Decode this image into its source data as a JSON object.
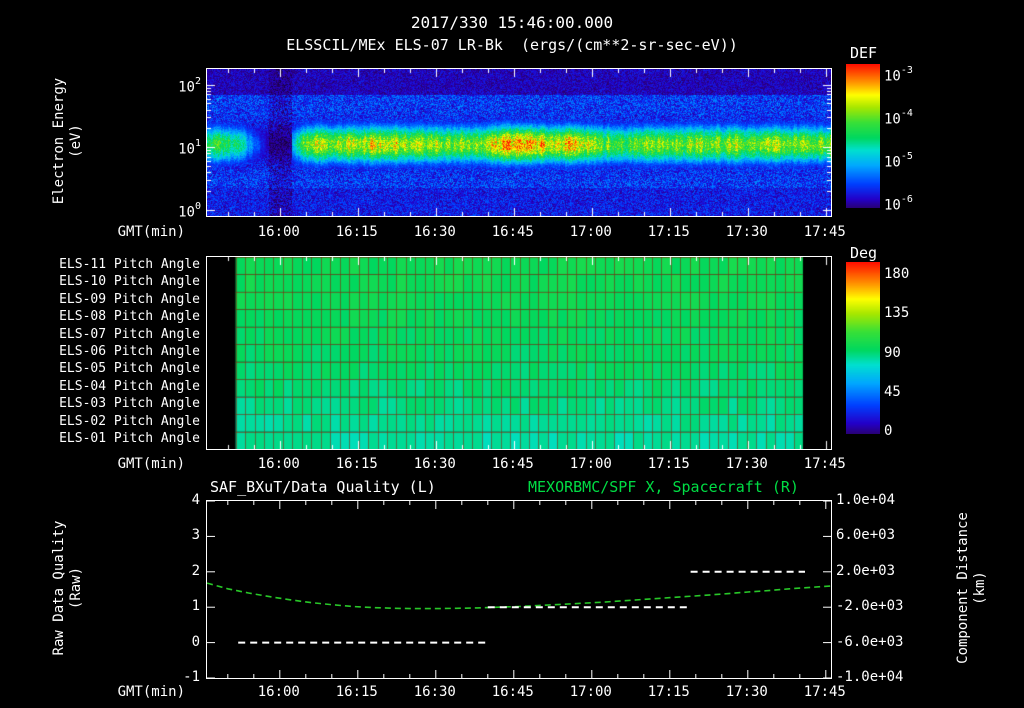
{
  "header": {
    "timestamp": "2017/330 15:46:00.000",
    "subtitle": "ELSSCIL/MEx ELS-07 LR-Bk  (ergs/(cm**2-sr-sec-eV))"
  },
  "gmt_label": "GMT(min)",
  "colors": {
    "background": "#000000",
    "foreground": "#ffffff",
    "accent_green": "#00dd44",
    "curve_green": "#28c828",
    "grid_brown": "rgba(130,45,15,0.6)",
    "colormap_stops": [
      [
        0.0,
        "#08001e"
      ],
      [
        0.06,
        "#2a0070"
      ],
      [
        0.12,
        "#2400c8"
      ],
      [
        0.22,
        "#0040ff"
      ],
      [
        0.34,
        "#00a8ff"
      ],
      [
        0.44,
        "#00e0d0"
      ],
      [
        0.52,
        "#00d860"
      ],
      [
        0.62,
        "#38e038"
      ],
      [
        0.72,
        "#a8e800"
      ],
      [
        0.8,
        "#ffff00"
      ],
      [
        0.88,
        "#ff9800"
      ],
      [
        1.0,
        "#ff1000"
      ]
    ]
  },
  "x_axis": {
    "start_time": "15:46",
    "span_min": 120,
    "minor_step_min": 5,
    "major_ticks": [
      {
        "label": "16:00",
        "min": 14
      },
      {
        "label": "16:15",
        "min": 29
      },
      {
        "label": "16:30",
        "min": 44
      },
      {
        "label": "16:45",
        "min": 59
      },
      {
        "label": "17:00",
        "min": 74
      },
      {
        "label": "17:15",
        "min": 89
      },
      {
        "label": "17:30",
        "min": 104
      },
      {
        "label": "17:45",
        "min": 119
      }
    ]
  },
  "chart_data": [
    {
      "id": "electron-energy-spectrogram",
      "type": "heatmap",
      "title": "ELSSCIL/MEx ELS-07 LR-Bk",
      "units": "ergs/(cm**2-sr-sec-eV)",
      "ylabel_line1": "Electron Energy",
      "ylabel_line2": "(eV)",
      "y_scale": "log",
      "y_log_top": 2.25,
      "y_log_span": 2.35,
      "y_ticks": [
        {
          "base": "10",
          "exp": "2",
          "log10": 2
        },
        {
          "base": "10",
          "exp": "1",
          "log10": 1
        },
        {
          "base": "10",
          "exp": "0",
          "log10": 0
        }
      ],
      "colorbar": {
        "title": "DEF",
        "tick_labels": [
          {
            "base": "10",
            "exp": "-3"
          },
          {
            "base": "10",
            "exp": "-4"
          },
          {
            "base": "10",
            "exp": "-5"
          },
          {
            "base": "10",
            "exp": "-6"
          }
        ]
      },
      "band_center_log_ev": 1.05,
      "band_sigma_log": 0.22,
      "profile_t_step_min": 3,
      "band_amplitude_profile": [
        0.55,
        0.6,
        0.5,
        0.28,
        0.08,
        0.2,
        0.65,
        0.75,
        0.7,
        0.75,
        0.8,
        0.75,
        0.78,
        0.72,
        0.75,
        0.7,
        0.72,
        0.68,
        0.75,
        0.88,
        0.92,
        0.85,
        0.8,
        0.82,
        0.78,
        0.7,
        0.65,
        0.6,
        0.68,
        0.72,
        0.7,
        0.72,
        0.68,
        0.7,
        0.72,
        0.7,
        0.72,
        0.7,
        0.68,
        0.7,
        0.68
      ],
      "data_gaps_min": [
        [
          11.8,
          16.2
        ]
      ]
    },
    {
      "id": "pitch-angle-panels",
      "type": "heatmap",
      "row_labels": [
        "ELS-11 Pitch Angle",
        "ELS-10 Pitch Angle",
        "ELS-09 Pitch Angle",
        "ELS-08 Pitch Angle",
        "ELS-07 Pitch Angle",
        "ELS-06 Pitch Angle",
        "ELS-05 Pitch Angle",
        "ELS-04 Pitch Angle",
        "ELS-03 Pitch Angle",
        "ELS-02 Pitch Angle",
        "ELS-01 Pitch Angle"
      ],
      "row_mean_pitch_deg": [
        103,
        103,
        102,
        101,
        100,
        99,
        98,
        96,
        94,
        92,
        90
      ],
      "value_jitter_deg": 8,
      "data_start_min": 5.5,
      "data_end_min": 114.5,
      "cell_width_min": 1.82,
      "colorbar": {
        "title": "Deg",
        "tick_labels": [
          "180",
          "135",
          "90",
          "45",
          "0"
        ],
        "range": [
          0,
          190
        ]
      }
    },
    {
      "id": "quality-and-distance",
      "type": "line",
      "title_left": "SAF_BXuT/Data Quality (L)",
      "title_right": "MEXORBMC/SPF X, Spacecraft (R)",
      "ylabel_left_line1": "Raw Data Quality",
      "ylabel_left_line2": "(Raw)",
      "ylabel_right_line1": "Component Distance",
      "ylabel_right_line2": "(km)",
      "ylim_left": [
        -1,
        4
      ],
      "left_tick_labels": [
        "4",
        "3",
        "2",
        "1",
        "0",
        "-1"
      ],
      "left_tick_values": [
        4,
        3,
        2,
        1,
        0,
        -1
      ],
      "ylim_right": [
        -10000,
        10000
      ],
      "right_tick_labels": [
        "1.0e+04",
        "6.0e+03",
        "2.0e+03",
        "-2.0e+03",
        "-6.0e+03",
        "-1.0e+04"
      ],
      "right_tick_values": [
        10000,
        6000,
        2000,
        -2000,
        -6000,
        -10000
      ],
      "right_axis_km_per_left_unit": 4000,
      "right_axis_km_offset": -6000,
      "series": [
        {
          "name": "SAF_BXuT/Data Quality (L)",
          "axis": "left",
          "color": "#ffffff",
          "style": "dashed",
          "segments": [
            {
              "value": 0,
              "t_start_min": 6,
              "t_end_min": 54
            },
            {
              "value": 1,
              "t_start_min": 54,
              "t_end_min": 93
            },
            {
              "value": 2,
              "t_start_min": 93,
              "t_end_min": 115
            }
          ]
        },
        {
          "name": "MEXORBMC/SPF X, Spacecraft (R)",
          "axis": "left_equivalent",
          "color": "#28c828",
          "style": "dashed",
          "points_t_min": [
            0,
            4,
            8,
            12,
            16,
            20,
            24,
            28,
            32,
            36,
            40,
            44,
            48,
            52,
            56,
            60,
            64,
            68,
            72,
            76,
            80,
            84,
            88,
            92,
            96,
            100,
            104,
            108,
            112,
            116,
            120
          ],
          "points_value": [
            1.68,
            1.52,
            1.4,
            1.3,
            1.21,
            1.13,
            1.07,
            1.02,
            0.99,
            0.97,
            0.96,
            0.96,
            0.97,
            0.98,
            1.0,
            1.02,
            1.05,
            1.08,
            1.11,
            1.14,
            1.18,
            1.22,
            1.26,
            1.3,
            1.34,
            1.38,
            1.43,
            1.47,
            1.52,
            1.56,
            1.6
          ]
        }
      ]
    }
  ]
}
